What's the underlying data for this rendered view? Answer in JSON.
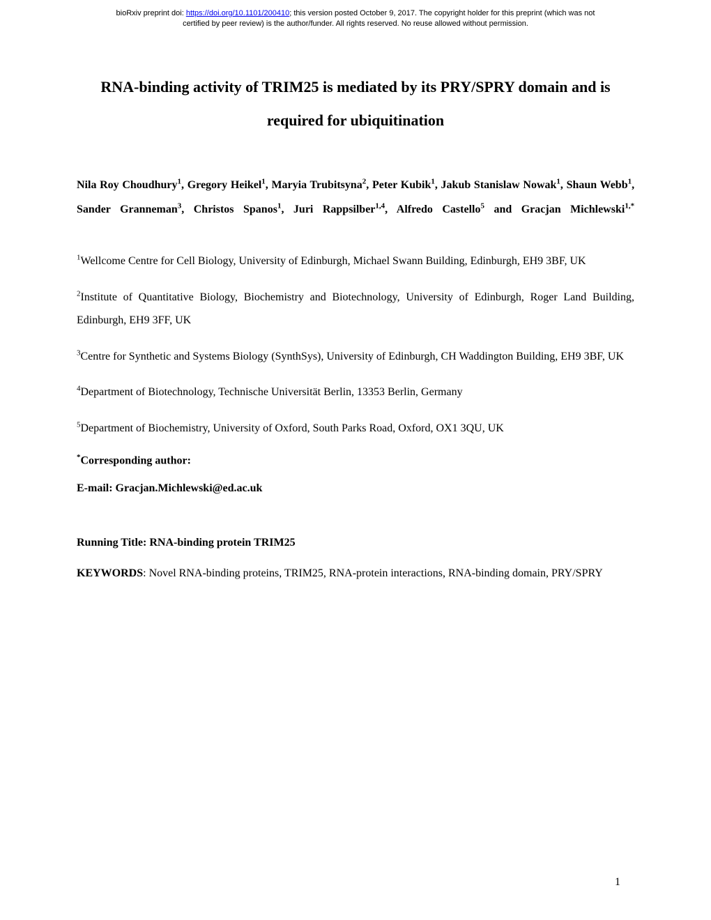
{
  "preprint": {
    "line1_prefix": "bioRxiv preprint doi: ",
    "doi_url": "https://doi.org/10.1101/200410",
    "line1_suffix": "; this version posted October 9, 2017. The copyright holder for this preprint (which was not",
    "line2": "certified by peer review) is the author/funder. All rights reserved. No reuse allowed without permission."
  },
  "title": "RNA-binding activity of TRIM25 is mediated by its PRY/SPRY domain and is required for ubiquitination",
  "authors": {
    "a1": {
      "name": "Nila Roy Choudhury",
      "aff": "1"
    },
    "a2": {
      "name": "Gregory Heikel",
      "aff": "1"
    },
    "a3": {
      "name": "Maryia Trubitsyna",
      "aff": "2"
    },
    "a4": {
      "name": "Peter Kubik",
      "aff": "1"
    },
    "a5": {
      "name": "Jakub Stanislaw Nowak",
      "aff": "1"
    },
    "a6": {
      "name": "Shaun Webb",
      "aff": "1"
    },
    "a7": {
      "name": "Sander Granneman",
      "aff": "3"
    },
    "a8": {
      "name": "Christos Spanos",
      "aff": "1"
    },
    "a9": {
      "name": "Juri Rappsilber",
      "aff": "1,4"
    },
    "a10": {
      "name": "Alfredo Castello",
      "aff": "5"
    },
    "a11": {
      "name": "Gracjan Michlewski",
      "aff": "1,*"
    },
    "and": " and "
  },
  "affiliations": {
    "aff1": {
      "num": "1",
      "text": "Wellcome Centre for Cell Biology, University of Edinburgh, Michael Swann Building, Edinburgh, EH9 3BF, UK"
    },
    "aff2": {
      "num": "2",
      "text": "Institute of Quantitative Biology, Biochemistry and Biotechnology, University of Edinburgh, Roger Land Building, Edinburgh, EH9 3FF, UK"
    },
    "aff3": {
      "num": "3",
      "text": "Centre for Synthetic and Systems Biology (SynthSys), University of Edinburgh, CH Waddington Building, EH9 3BF, UK"
    },
    "aff4": {
      "num": "4",
      "text": "Department of Biotechnology, Technische Universität Berlin, 13353 Berlin, Germany"
    },
    "aff5": {
      "num": "5",
      "text": "Department of Biochemistry, University of Oxford, South Parks Road, Oxford, OX1 3QU, UK"
    }
  },
  "corresponding": {
    "marker": "*",
    "label": "Corresponding author:"
  },
  "email": {
    "label": "E-mail: ",
    "value": "Gracjan.Michlewski@ed.ac.uk"
  },
  "running_title": {
    "label": "Running Title: ",
    "value": "RNA-binding protein TRIM25"
  },
  "keywords": {
    "label": "KEYWORDS",
    "text": ": Novel RNA-binding proteins, TRIM25, RNA-protein interactions, RNA-binding domain, PRY/SPRY"
  },
  "page_number": "1"
}
